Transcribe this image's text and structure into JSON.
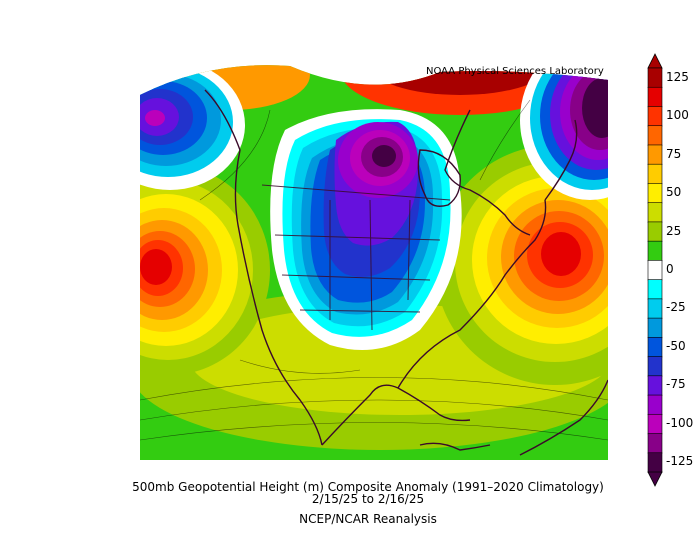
{
  "credit": "NOAA Physical Sciences Laboratory",
  "caption": {
    "title": "500mb Geopotential Height (m) Composite Anomaly (1991–2020 Climatology)",
    "dates": "2/15/25   to 2/16/25",
    "source": "NCEP/NCAR Reanalysis"
  },
  "colorbar": {
    "levels": [
      {
        "value": 125,
        "label": "125",
        "color": "#a80000"
      },
      {
        "value": 112,
        "label": "",
        "color": "#e50000"
      },
      {
        "value": 100,
        "label": "100",
        "color": "#ff3300"
      },
      {
        "value": 87,
        "label": "",
        "color": "#ff6600"
      },
      {
        "value": 75,
        "label": "75",
        "color": "#ff9900"
      },
      {
        "value": 62,
        "label": "",
        "color": "#ffcc00"
      },
      {
        "value": 50,
        "label": "50",
        "color": "#ffee00"
      },
      {
        "value": 37,
        "label": "",
        "color": "#ccdd00"
      },
      {
        "value": 25,
        "label": "25",
        "color": "#99cc00"
      },
      {
        "value": 12,
        "label": "",
        "color": "#33cc11"
      },
      {
        "value": 0,
        "label": "0",
        "color": "#ffffff"
      },
      {
        "value": -12,
        "label": "",
        "color": "#00ffff"
      },
      {
        "value": -25,
        "label": "-25",
        "color": "#00ccee"
      },
      {
        "value": -37,
        "label": "",
        "color": "#0099dd"
      },
      {
        "value": -50,
        "label": "-50",
        "color": "#0055dd"
      },
      {
        "value": -62,
        "label": "",
        "color": "#2233cc"
      },
      {
        "value": -75,
        "label": "-75",
        "color": "#6611dd"
      },
      {
        "value": -87,
        "label": "",
        "color": "#9900cc"
      },
      {
        "value": -100,
        "label": "-100",
        "color": "#bb00bb"
      },
      {
        "value": -112,
        "label": "",
        "color": "#880088"
      },
      {
        "value": -125,
        "label": "-125",
        "color": "#440044"
      }
    ]
  },
  "features": [
    {
      "name": "positive-anomaly-northeast-pacific",
      "peak_m": 125,
      "color": "#e50000"
    },
    {
      "name": "positive-anomaly-western-atlantic",
      "peak_m": 125,
      "color": "#e50000"
    },
    {
      "name": "negative-anomaly-central-canada-us",
      "peak_m": -125,
      "color": "#440044"
    },
    {
      "name": "negative-anomaly-alaska",
      "peak_m": -75,
      "color": "#6611dd"
    },
    {
      "name": "negative-anomaly-greenland",
      "peak_m": -125,
      "color": "#440044"
    },
    {
      "name": "positive-anomaly-arctic",
      "peak_m": 125,
      "color": "#a80000"
    }
  ]
}
